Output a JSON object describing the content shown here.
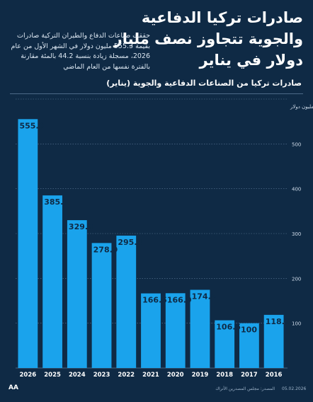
{
  "header": {
    "title": "صادرات تركيا الدفاعية والجوية تتجاوز نصف مليار دولار في يناير",
    "description": "حققت صناعات الدفاع والطيران التركية صادرات بقيمة 555.3 مليون دولار في الشهر الأول من عام 2026، مسجلة زيادة بنسبة 44.2 بالمئة مقارنة بالفترة نفسها من العام الماضي"
  },
  "footer": {
    "logo": "AA",
    "source": "المصدر: مجلس المصدرين الأتراك",
    "date": "05.02.2026"
  },
  "colors": {
    "background": "#0f2a45",
    "bar": "#1aa3ec",
    "grid": "#5b7896",
    "text": "#ffffff"
  },
  "chart_data": {
    "type": "bar",
    "title": "صادرات تركيا من الصناعات الدفاعية والجوية (يناير)",
    "ylabel": "مليون دولار",
    "ylim": [
      0,
      600
    ],
    "yticks": [
      0,
      100,
      200,
      300,
      400,
      500,
      600
    ],
    "grid": true,
    "categories": [
      "2026",
      "2025",
      "2024",
      "2023",
      "2022",
      "2021",
      "2020",
      "2019",
      "2018",
      "2017",
      "2016"
    ],
    "values": [
      555.3,
      385.1,
      329.9,
      278.9,
      295.4,
      166.5,
      166.9,
      174.5,
      106.5,
      100,
      118.6
    ],
    "data_labels": [
      "555.3",
      "385.1",
      "329.9",
      "278.9",
      "295.4",
      "166.5",
      "166.9",
      "174.5",
      "106.5",
      "100",
      "118.6"
    ]
  }
}
